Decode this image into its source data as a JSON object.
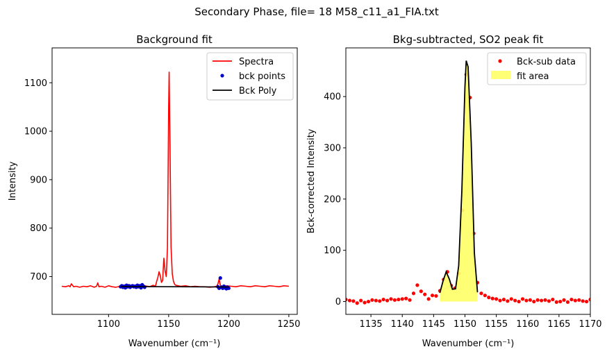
{
  "figure": {
    "suptitle": "Secondary Phase, file= 18 M58_c11_a1_FIA.txt"
  },
  "chart_data": [
    {
      "type": "line",
      "title": "Background fit",
      "xlabel": "Wavenumber (cm⁻¹)",
      "ylabel": "Intensity",
      "xlim": [
        1053,
        1257
      ],
      "ylim": [
        622,
        1172
      ],
      "xticks": [
        1100,
        1150,
        1200,
        1250
      ],
      "yticks": [
        700,
        800,
        900,
        1000,
        1100
      ],
      "legend_position": "top-right",
      "grid": false,
      "series": [
        {
          "name": "Spectra",
          "kind": "line",
          "color": "#ff0000",
          "x": [
            1061,
            1064,
            1067,
            1068,
            1069,
            1071,
            1073,
            1076,
            1079,
            1082,
            1085,
            1088,
            1090,
            1091,
            1092,
            1094,
            1097,
            1100,
            1103,
            1106,
            1110,
            1114,
            1118,
            1122,
            1126,
            1130,
            1134,
            1137,
            1139,
            1140,
            1141,
            1142,
            1143,
            1144,
            1145,
            1146,
            1147,
            1148,
            1149,
            1150,
            1150.4,
            1151,
            1152,
            1153,
            1154,
            1155,
            1156,
            1158,
            1160,
            1164,
            1168,
            1172,
            1176,
            1180,
            1184,
            1188,
            1190,
            1191,
            1192,
            1193,
            1195,
            1198,
            1202,
            1206,
            1210,
            1214,
            1218,
            1222,
            1226,
            1230,
            1234,
            1238,
            1242,
            1246,
            1250
          ],
          "y": [
            680,
            679,
            681,
            679,
            685,
            679,
            680,
            678,
            680,
            679,
            681,
            678,
            680,
            687,
            679,
            680,
            678,
            681,
            679,
            678,
            680,
            681,
            679,
            682,
            680,
            681,
            679,
            682,
            680,
            690,
            698,
            710,
            702,
            688,
            692,
            738,
            712,
            700,
            760,
            1050,
            1122,
            1000,
            760,
            706,
            690,
            684,
            682,
            681,
            680,
            681,
            679,
            680,
            679,
            679,
            678,
            679,
            680,
            685,
            695,
            682,
            679,
            681,
            680,
            679,
            681,
            680,
            679,
            681,
            680,
            679,
            681,
            680,
            679,
            681,
            680
          ]
        },
        {
          "name": "bck points",
          "kind": "scatter",
          "color": "#0000cc",
          "x": [
            1110,
            1111,
            1112,
            1113,
            1114,
            1115,
            1116,
            1117,
            1118,
            1119,
            1120,
            1121,
            1122,
            1123,
            1124,
            1125,
            1126,
            1127,
            1128,
            1129,
            1130,
            1191,
            1192,
            1193,
            1194,
            1195,
            1196,
            1197,
            1198,
            1199,
            1200
          ],
          "y": [
            679,
            681,
            678,
            680,
            677,
            682,
            679,
            681,
            678,
            680,
            681,
            679,
            680,
            678,
            682,
            679,
            681,
            677,
            683,
            680,
            678,
            679,
            676,
            697,
            678,
            676,
            680,
            677,
            675,
            678,
            676
          ]
        },
        {
          "name": "Bck Poly",
          "kind": "line",
          "color": "#000000",
          "x": [
            1110,
            1155,
            1200
          ],
          "y": [
            679.5,
            679.0,
            678.5
          ]
        }
      ]
    },
    {
      "type": "scatter",
      "title": "Bkg-subtracted, SO2 peak fit",
      "xlabel": "Wavenumber (cm⁻¹)",
      "ylabel": "Bck-corrected Intensity",
      "xlim": [
        1131,
        1170
      ],
      "ylim": [
        -25,
        495
      ],
      "xticks": [
        1135,
        1140,
        1145,
        1150,
        1155,
        1160,
        1165,
        1170
      ],
      "yticks": [
        0,
        100,
        200,
        300,
        400
      ],
      "legend_position": "top-right",
      "grid": false,
      "series": [
        {
          "name": "Bck-sub data",
          "kind": "scatter",
          "color": "#ff0000",
          "x": [
            1131,
            1131.6,
            1132.2,
            1132.8,
            1133.4,
            1134.0,
            1134.6,
            1135.2,
            1135.8,
            1136.4,
            1137.0,
            1137.6,
            1138.2,
            1138.8,
            1139.4,
            1140.0,
            1140.6,
            1141.2,
            1141.8,
            1142.4,
            1143.0,
            1143.6,
            1144.2,
            1144.8,
            1145.4,
            1146.0,
            1146.6,
            1147.2,
            1147.8,
            1148.4,
            1149.0,
            1149.6,
            1150.2,
            1150.8,
            1151.4,
            1152.0,
            1152.6,
            1153.2,
            1153.8,
            1154.4,
            1155.0,
            1155.6,
            1156.2,
            1156.8,
            1157.4,
            1158.0,
            1158.6,
            1159.2,
            1159.8,
            1160.4,
            1161.0,
            1161.6,
            1162.2,
            1162.8,
            1163.4,
            1164.0,
            1164.6,
            1165.2,
            1165.8,
            1166.4,
            1167.0,
            1167.6,
            1168.2,
            1168.8,
            1169.4,
            1170.0
          ],
          "y": [
            4,
            2,
            1,
            -3,
            2,
            -2,
            0,
            3,
            2,
            1,
            4,
            2,
            5,
            3,
            4,
            5,
            6,
            3,
            16,
            32,
            20,
            14,
            5,
            12,
            11,
            21,
            43,
            58,
            31,
            26,
            55,
            178,
            443,
            398,
            133,
            37,
            16,
            12,
            8,
            6,
            5,
            2,
            4,
            1,
            5,
            2,
            0,
            5,
            2,
            3,
            0,
            3,
            2,
            3,
            1,
            4,
            -1,
            0,
            3,
            -1,
            4,
            2,
            3,
            1,
            0,
            4
          ]
        },
        {
          "name": "fit area",
          "kind": "area",
          "color": "#ffff66",
          "x": [
            1146.0,
            1146.5,
            1147.0,
            1147.5,
            1148.0,
            1148.5,
            1149.0,
            1149.5,
            1150.0,
            1150.2,
            1150.5,
            1151.0,
            1151.5,
            1152.0
          ],
          "y": [
            17,
            40,
            58,
            44,
            24,
            25,
            70,
            215,
            420,
            470,
            458,
            310,
            95,
            18
          ]
        }
      ]
    }
  ]
}
